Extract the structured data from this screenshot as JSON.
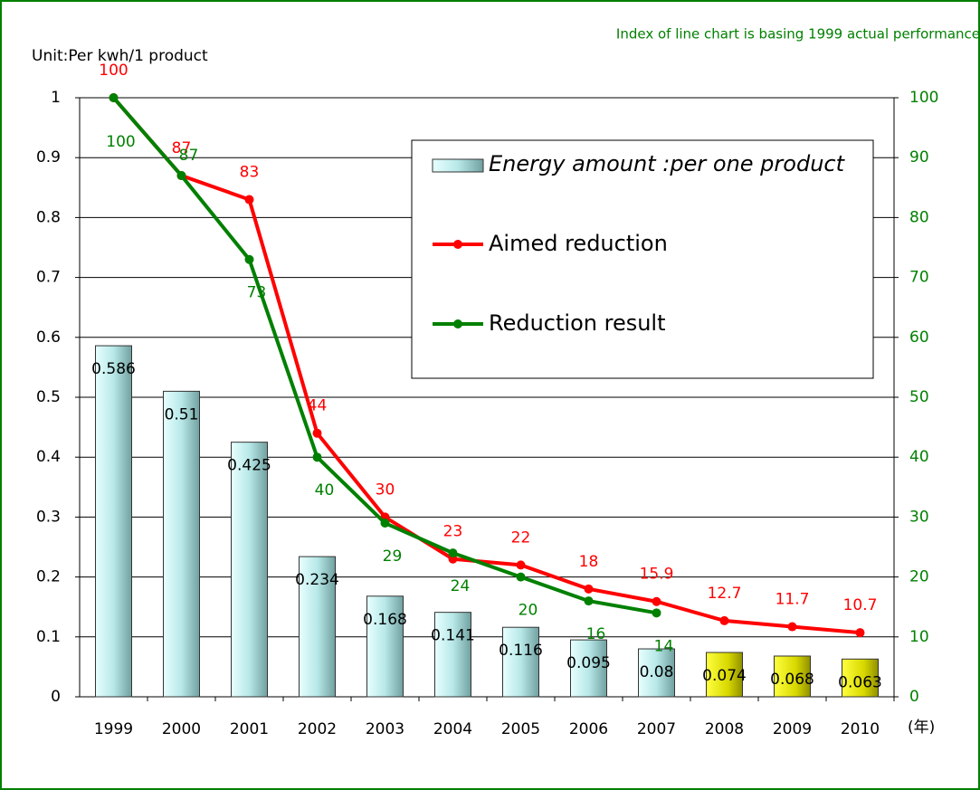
{
  "chart_data": {
    "type": "bar",
    "title": "Index of  line chart is basing 1999 actual performance",
    "y_label": "Unit:Per kwh/1 product",
    "x_unit": "(年)",
    "categories": [
      "1999",
      "2000",
      "2001",
      "2002",
      "2003",
      "2004",
      "2005",
      "2006",
      "2007",
      "2008",
      "2009",
      "2010"
    ],
    "series": [
      {
        "name": "Energy amount :per one product",
        "type": "bar",
        "color": "#c8f0f0",
        "colors": [
          "#c8f0f0",
          "#c8f0f0",
          "#c8f0f0",
          "#c8f0f0",
          "#c8f0f0",
          "#c8f0f0",
          "#c8f0f0",
          "#c8f0f0",
          "#c8f0f0",
          "#e6e600",
          "#e6e600",
          "#e6e600"
        ],
        "values": [
          0.586,
          0.51,
          0.425,
          0.234,
          0.168,
          0.141,
          0.116,
          0.095,
          0.08,
          0.074,
          0.068,
          0.063
        ]
      },
      {
        "name": "Aimed reduction",
        "type": "line",
        "axis": "y2",
        "color": "#ff0000",
        "values": [
          100,
          87,
          83,
          44,
          30,
          23,
          22,
          18,
          15.9,
          12.7,
          11.7,
          10.7
        ]
      },
      {
        "name": "Reduction result",
        "type": "line",
        "axis": "y2",
        "color": "#008000",
        "values": [
          100,
          87,
          73,
          40,
          29,
          24,
          20,
          16,
          14,
          null,
          null,
          null
        ]
      }
    ],
    "ylim": [
      0,
      1
    ],
    "yticks": [
      0,
      0.1,
      0.2,
      0.3,
      0.4,
      0.5,
      0.6,
      0.7,
      0.8,
      0.9,
      1
    ],
    "y2lim": [
      0,
      100
    ],
    "y2ticks": [
      0,
      10,
      20,
      30,
      40,
      50,
      60,
      70,
      80,
      90,
      100
    ],
    "grid": true
  }
}
